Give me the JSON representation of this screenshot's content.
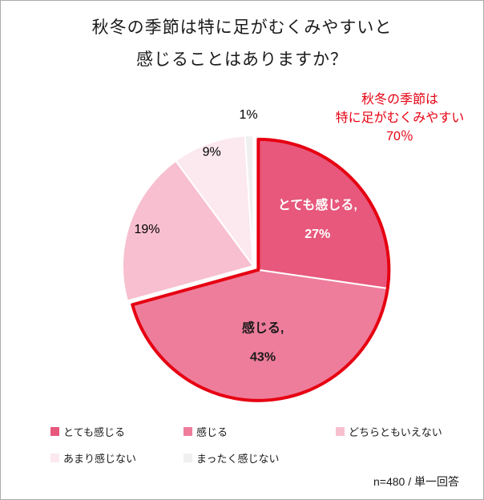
{
  "page": {
    "title_line1": "秋冬の季節は特に足がむくみやすいと",
    "title_line2": "感じることはありますか？",
    "footnote": "n=480 / 単一回答"
  },
  "annotation": {
    "line1": "秋冬の季節は",
    "line2": "特に足がむくみやすい",
    "line3": "70％",
    "color": "#e60012"
  },
  "chart_data": {
    "type": "pie",
    "title": "秋冬の季節は特に足がむくみやすいと感じることはありますか？",
    "categories": [
      "とても感じる",
      "感じる",
      "どちらともいえない",
      "あまり感じない",
      "まったく感じない"
    ],
    "values": [
      27,
      43,
      19,
      9,
      1
    ],
    "colors": [
      "#e7587c",
      "#ee7d9b",
      "#f7bfcf",
      "#fce8ef",
      "#f1f0f0"
    ],
    "start_angle": 0,
    "direction": "clockwise",
    "legend_position": "bottom",
    "data_labels": [
      {
        "lines": [
          "とても感じる,",
          "27%"
        ],
        "placement": "inside"
      },
      {
        "lines": [
          "感じる,",
          "43%"
        ],
        "placement": "inside"
      },
      {
        "lines": [
          "19%"
        ],
        "placement": "outside"
      },
      {
        "lines": [
          "9%"
        ],
        "placement": "outside"
      },
      {
        "lines": [
          "1%"
        ],
        "placement": "outside"
      }
    ],
    "highlight": {
      "slice_indices": [
        0,
        1
      ],
      "total": 70,
      "outline_color": "#e60012",
      "label": "秋冬の季節は特に足がむくみやすい 70％"
    }
  },
  "legend": {
    "items": [
      {
        "label": "とても感じる",
        "color": "#e7587c"
      },
      {
        "label": "感じる",
        "color": "#ee7d9b"
      },
      {
        "label": "どちらともいえない",
        "color": "#f7bfcf"
      },
      {
        "label": "あまり感じない",
        "color": "#fce8ef"
      },
      {
        "label": "まったく感じない",
        "color": "#f1f0f0"
      }
    ]
  }
}
